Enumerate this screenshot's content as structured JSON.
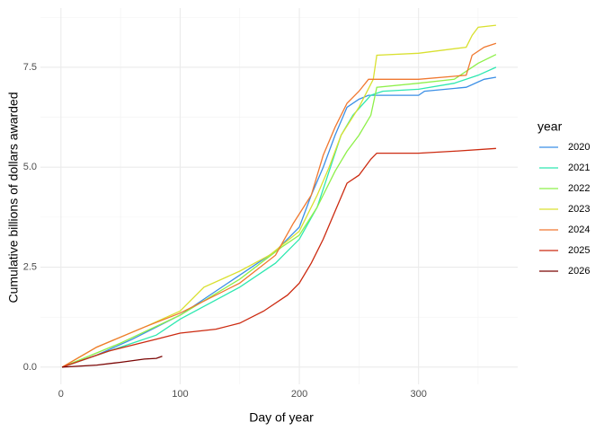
{
  "chart_data": {
    "type": "line",
    "xlabel": "Day of year",
    "ylabel": "Cumulative billions of dollars awarded",
    "xlim": [
      -17.2,
      383.2
    ],
    "ylim": [
      -0.43,
      8.98
    ],
    "xticks": [
      0,
      100,
      200,
      300
    ],
    "yticks": [
      {
        "value": 0,
        "label": "0.0"
      },
      2.5,
      {
        "value": 5,
        "label": "5.0"
      },
      7.5
    ],
    "x_minor_breaks": [
      50,
      150,
      250,
      350
    ],
    "y_minor_breaks": [
      1.25,
      3.75,
      6.25,
      8.75
    ],
    "grid": true,
    "legend_title": "year",
    "legend_position": "right",
    "series": [
      {
        "name": "2020",
        "color": "#3b8fe6",
        "x": [
          1,
          30,
          60,
          100,
          150,
          180,
          200,
          210,
          220,
          230,
          240,
          250,
          258,
          270,
          300,
          305,
          340,
          355,
          365
        ],
        "values": [
          0,
          0.3,
          0.7,
          1.3,
          2.3,
          2.9,
          3.5,
          4.3,
          5.0,
          5.8,
          6.5,
          6.7,
          6.8,
          6.8,
          6.8,
          6.9,
          7.0,
          7.2,
          7.25
        ]
      },
      {
        "name": "2021",
        "color": "#2ee8b0",
        "x": [
          1,
          50,
          80,
          100,
          150,
          180,
          200,
          215,
          225,
          235,
          245,
          260,
          270,
          300,
          330,
          350,
          365
        ],
        "values": [
          0,
          0.5,
          0.8,
          1.2,
          2.0,
          2.6,
          3.2,
          4.0,
          4.9,
          5.8,
          6.3,
          6.8,
          6.9,
          6.95,
          7.1,
          7.3,
          7.5
        ]
      },
      {
        "name": "2022",
        "color": "#8ef04a",
        "x": [
          1,
          50,
          100,
          150,
          185,
          200,
          215,
          230,
          240,
          250,
          260,
          265,
          300,
          330,
          350,
          365
        ],
        "values": [
          0,
          0.6,
          1.3,
          2.2,
          3.0,
          3.3,
          4.0,
          4.9,
          5.4,
          5.8,
          6.3,
          7.0,
          7.1,
          7.2,
          7.6,
          7.82
        ]
      },
      {
        "name": "2023",
        "color": "#d9e030",
        "x": [
          1,
          30,
          70,
          100,
          120,
          150,
          175,
          200,
          215,
          225,
          235,
          250,
          262,
          265,
          300,
          340,
          345,
          350,
          365
        ],
        "values": [
          0,
          0.5,
          1.0,
          1.4,
          2.0,
          2.4,
          2.8,
          3.4,
          4.3,
          5.0,
          5.8,
          6.5,
          7.2,
          7.8,
          7.85,
          8.0,
          8.3,
          8.5,
          8.55
        ]
      },
      {
        "name": "2024",
        "color": "#f07830",
        "x": [
          1,
          30,
          70,
          100,
          150,
          180,
          195,
          210,
          220,
          230,
          240,
          250,
          258,
          300,
          340,
          345,
          355,
          365
        ],
        "values": [
          0,
          0.5,
          1.0,
          1.35,
          2.1,
          2.8,
          3.6,
          4.3,
          5.3,
          6.0,
          6.6,
          6.9,
          7.2,
          7.2,
          7.3,
          7.8,
          8.0,
          8.1
        ]
      },
      {
        "name": "2025",
        "color": "#cc2a10",
        "x": [
          1,
          40,
          80,
          100,
          130,
          150,
          170,
          190,
          200,
          210,
          220,
          230,
          240,
          250,
          260,
          265,
          300,
          330,
          365
        ],
        "values": [
          0,
          0.4,
          0.7,
          0.85,
          0.95,
          1.1,
          1.4,
          1.8,
          2.1,
          2.6,
          3.2,
          3.9,
          4.6,
          4.8,
          5.2,
          5.35,
          5.35,
          5.4,
          5.47
        ]
      },
      {
        "name": "2026",
        "color": "#7a0403",
        "x": [
          1,
          30,
          50,
          70,
          80,
          85
        ],
        "values": [
          0,
          0.05,
          0.12,
          0.2,
          0.22,
          0.27
        ]
      }
    ]
  }
}
